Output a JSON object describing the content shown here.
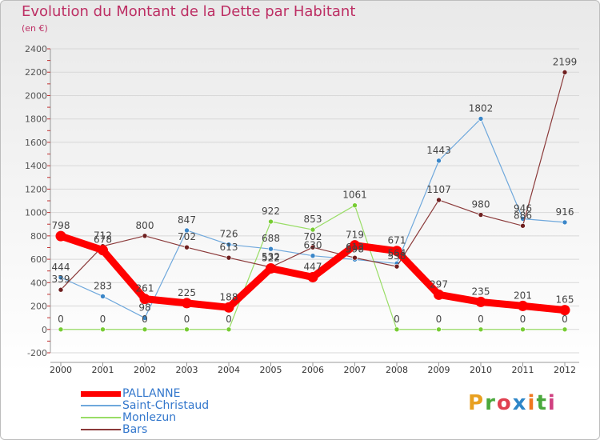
{
  "header": {
    "title": "Evolution du Montant de la Dette par Habitant",
    "subtitle": "(en €)"
  },
  "colors": {
    "title": "#bd2f64",
    "axis_text": "#555555",
    "gridline": "#d8d8d8",
    "legend_text": "#3377cc"
  },
  "logo": {
    "text": "Proxiti",
    "letter_colors": [
      "#e8a020",
      "#4aa83c",
      "#e04050",
      "#2e86c8",
      "#f07820",
      "#4aa83c",
      "#d04080"
    ]
  },
  "chart_data": {
    "type": "line",
    "title": "Evolution du Montant de la Dette par Habitant",
    "subtitle": "(en €)",
    "xlabel": "",
    "ylabel": "",
    "categories": [
      "2000",
      "2001",
      "2002",
      "2003",
      "2004",
      "2005",
      "2006",
      "2007",
      "2008",
      "2009",
      "2010",
      "2011",
      "2012"
    ],
    "y_ticks": [
      -200,
      0,
      200,
      400,
      600,
      800,
      1000,
      1200,
      1400,
      1600,
      1800,
      2000,
      2200,
      2400
    ],
    "ylim": [
      -200,
      2400
    ],
    "grid": true,
    "legend_position": "bottom-left",
    "series": [
      {
        "name": "PALLANNE",
        "color": "#ff0000",
        "emphasis": true,
        "values": [
          798,
          678,
          261,
          225,
          188,
          522,
          447,
          719,
          671,
          297,
          235,
          201,
          165
        ],
        "labels": [
          "798",
          "678",
          "261",
          "225",
          "188",
          "522",
          "447",
          "719",
          "671",
          "297",
          "235",
          "201",
          "165"
        ]
      },
      {
        "name": "Saint-Christaud",
        "color": "#6fa8dc",
        "marker_color": "#3a86c8",
        "values": [
          444,
          283,
          98,
          847,
          726,
          688,
          630,
          598,
          564,
          1443,
          1802,
          946,
          916
        ],
        "labels": [
          "444",
          "283",
          "98",
          "847",
          "726",
          "688",
          "630",
          "598",
          "564",
          "1443",
          "1802",
          "946",
          "916"
        ]
      },
      {
        "name": "Monlezun",
        "color": "#99dd66",
        "marker_color": "#77cc33",
        "values": [
          0,
          0,
          0,
          0,
          0,
          922,
          853,
          1061,
          0,
          0,
          0,
          0,
          0
        ],
        "labels": [
          "0",
          "0",
          "0",
          "0",
          "0",
          "922",
          "853",
          "1061",
          "0",
          "0",
          "0",
          "0",
          "0"
        ]
      },
      {
        "name": "Bars",
        "color": "#8b3a3a",
        "marker_color": "#6e1f1f",
        "values": [
          339,
          712,
          800,
          702,
          613,
          532,
          702,
          613,
          538,
          1107,
          980,
          886,
          2199
        ],
        "labels": [
          "339",
          "712",
          "800",
          "702",
          "613",
          "532",
          "702",
          "613",
          "538",
          "1107",
          "980",
          "886",
          "2199"
        ]
      }
    ]
  }
}
